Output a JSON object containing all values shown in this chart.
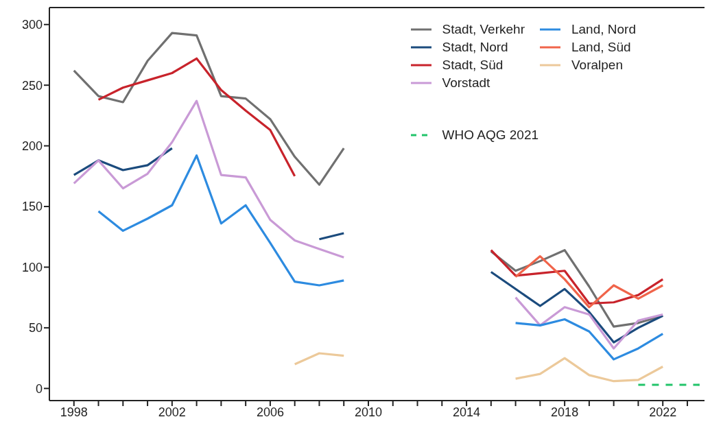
{
  "chart_data": {
    "type": "line",
    "legend": "top right",
    "line_style": "solid",
    "marker": "none",
    "x": [
      1998,
      1999,
      2000,
      2001,
      2002,
      2003,
      2004,
      2005,
      2006,
      2007,
      2008,
      2009,
      2010,
      2011,
      2012,
      2013,
      2014,
      2015,
      2016,
      2017,
      2018,
      2019,
      2020,
      2021,
      2022
    ],
    "xlim": [
      1997,
      2023.7
    ],
    "xticks": [
      1998,
      {
        "value": 1999,
        "label": null
      },
      {
        "value": 2000,
        "label": null
      },
      {
        "value": 2001,
        "label": null
      },
      2002,
      {
        "value": 2003,
        "label": null
      },
      {
        "value": 2004,
        "label": null
      },
      {
        "value": 2005,
        "label": null
      },
      2006,
      {
        "value": 2007,
        "label": null
      },
      {
        "value": 2008,
        "label": null
      },
      {
        "value": 2009,
        "label": null
      },
      2010,
      {
        "value": 2011,
        "label": null
      },
      {
        "value": 2012,
        "label": null
      },
      {
        "value": 2013,
        "label": null
      },
      2014,
      {
        "value": 2015,
        "label": null
      },
      {
        "value": 2016,
        "label": null
      },
      {
        "value": 2017,
        "label": null
      },
      2018,
      {
        "value": 2019,
        "label": null
      },
      {
        "value": 2020,
        "label": null
      },
      {
        "value": 2021,
        "label": null
      },
      2022,
      {
        "value": 2023,
        "label": null
      }
    ],
    "ylim": [
      -10,
      314
    ],
    "yticks": [
      0,
      50,
      100,
      150,
      200,
      250,
      300
    ],
    "series": [
      {
        "name": "Stadt, Verkehr",
        "color": "#707070",
        "values": [
          262,
          241,
          236,
          270,
          293,
          291,
          241,
          239,
          222,
          191,
          168,
          198,
          null,
          null,
          null,
          null,
          null,
          113,
          97,
          105,
          114,
          84,
          51,
          54,
          60
        ]
      },
      {
        "name": "Stadt, Nord",
        "color": "#1b4b7d",
        "values": [
          176,
          188,
          180,
          184,
          198,
          null,
          null,
          null,
          null,
          null,
          123,
          128,
          null,
          null,
          null,
          null,
          null,
          96,
          82,
          68,
          82,
          63,
          38,
          50,
          60
        ]
      },
      {
        "name": "Stadt, Süd",
        "color": "#c8232b",
        "values": [
          null,
          238,
          248,
          254,
          260,
          272,
          246,
          229,
          213,
          175,
          null,
          null,
          null,
          null,
          null,
          null,
          null,
          114,
          93,
          95,
          97,
          70,
          71,
          77,
          90
        ]
      },
      {
        "name": "Vorstadt",
        "color": "#c99ad6",
        "values": [
          169,
          188,
          165,
          177,
          203,
          237,
          176,
          174,
          139,
          122,
          115,
          108,
          null,
          null,
          null,
          null,
          null,
          null,
          75,
          52,
          67,
          61,
          33,
          56,
          61
        ]
      },
      {
        "name": "Land, Nord",
        "color": "#2d8be0",
        "values": [
          null,
          146,
          130,
          140,
          151,
          192,
          136,
          151,
          120,
          88,
          85,
          89,
          null,
          null,
          null,
          null,
          null,
          null,
          54,
          52,
          57,
          47,
          24,
          33,
          45
        ]
      },
      {
        "name": "Land, Süd",
        "color": "#f0644a",
        "values": [
          null,
          null,
          null,
          null,
          null,
          null,
          null,
          null,
          null,
          null,
          null,
          null,
          null,
          null,
          null,
          null,
          null,
          null,
          92,
          109,
          90,
          67,
          85,
          74,
          85
        ]
      },
      {
        "name": "Voralpen",
        "color": "#ecc99a",
        "values": [
          null,
          null,
          null,
          null,
          null,
          null,
          null,
          null,
          null,
          20,
          29,
          27,
          null,
          null,
          null,
          null,
          null,
          null,
          8,
          12,
          25,
          11,
          6,
          7,
          18
        ]
      },
      {
        "name": "WHO AQG 2021",
        "color": "#22c46a",
        "line_style": "dashed",
        "x": [
          2021,
          2023.5
        ],
        "values": [
          3,
          3
        ]
      }
    ]
  }
}
